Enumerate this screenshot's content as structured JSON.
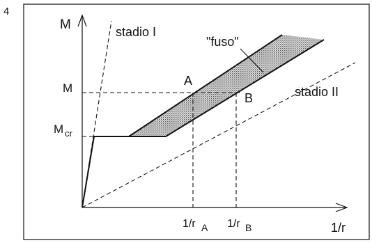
{
  "figure_number": "4",
  "axes": {
    "y_label": "M",
    "x_label": "1/r"
  },
  "y_ticks": {
    "m": "M",
    "mcr_main": "M",
    "mcr_sub": "cr"
  },
  "x_ticks": {
    "ra_main": "1/r",
    "ra_sub": "A",
    "rb_main": "1/r",
    "rb_sub": "B"
  },
  "labels": {
    "stadio_1": "stadio I",
    "stadio_2": "stadio II",
    "fuso": "\"fuso\"",
    "point_a": "A",
    "point_b": "B"
  },
  "colors": {
    "ink": "#111111",
    "band_fill": "#b9b9b9"
  }
}
